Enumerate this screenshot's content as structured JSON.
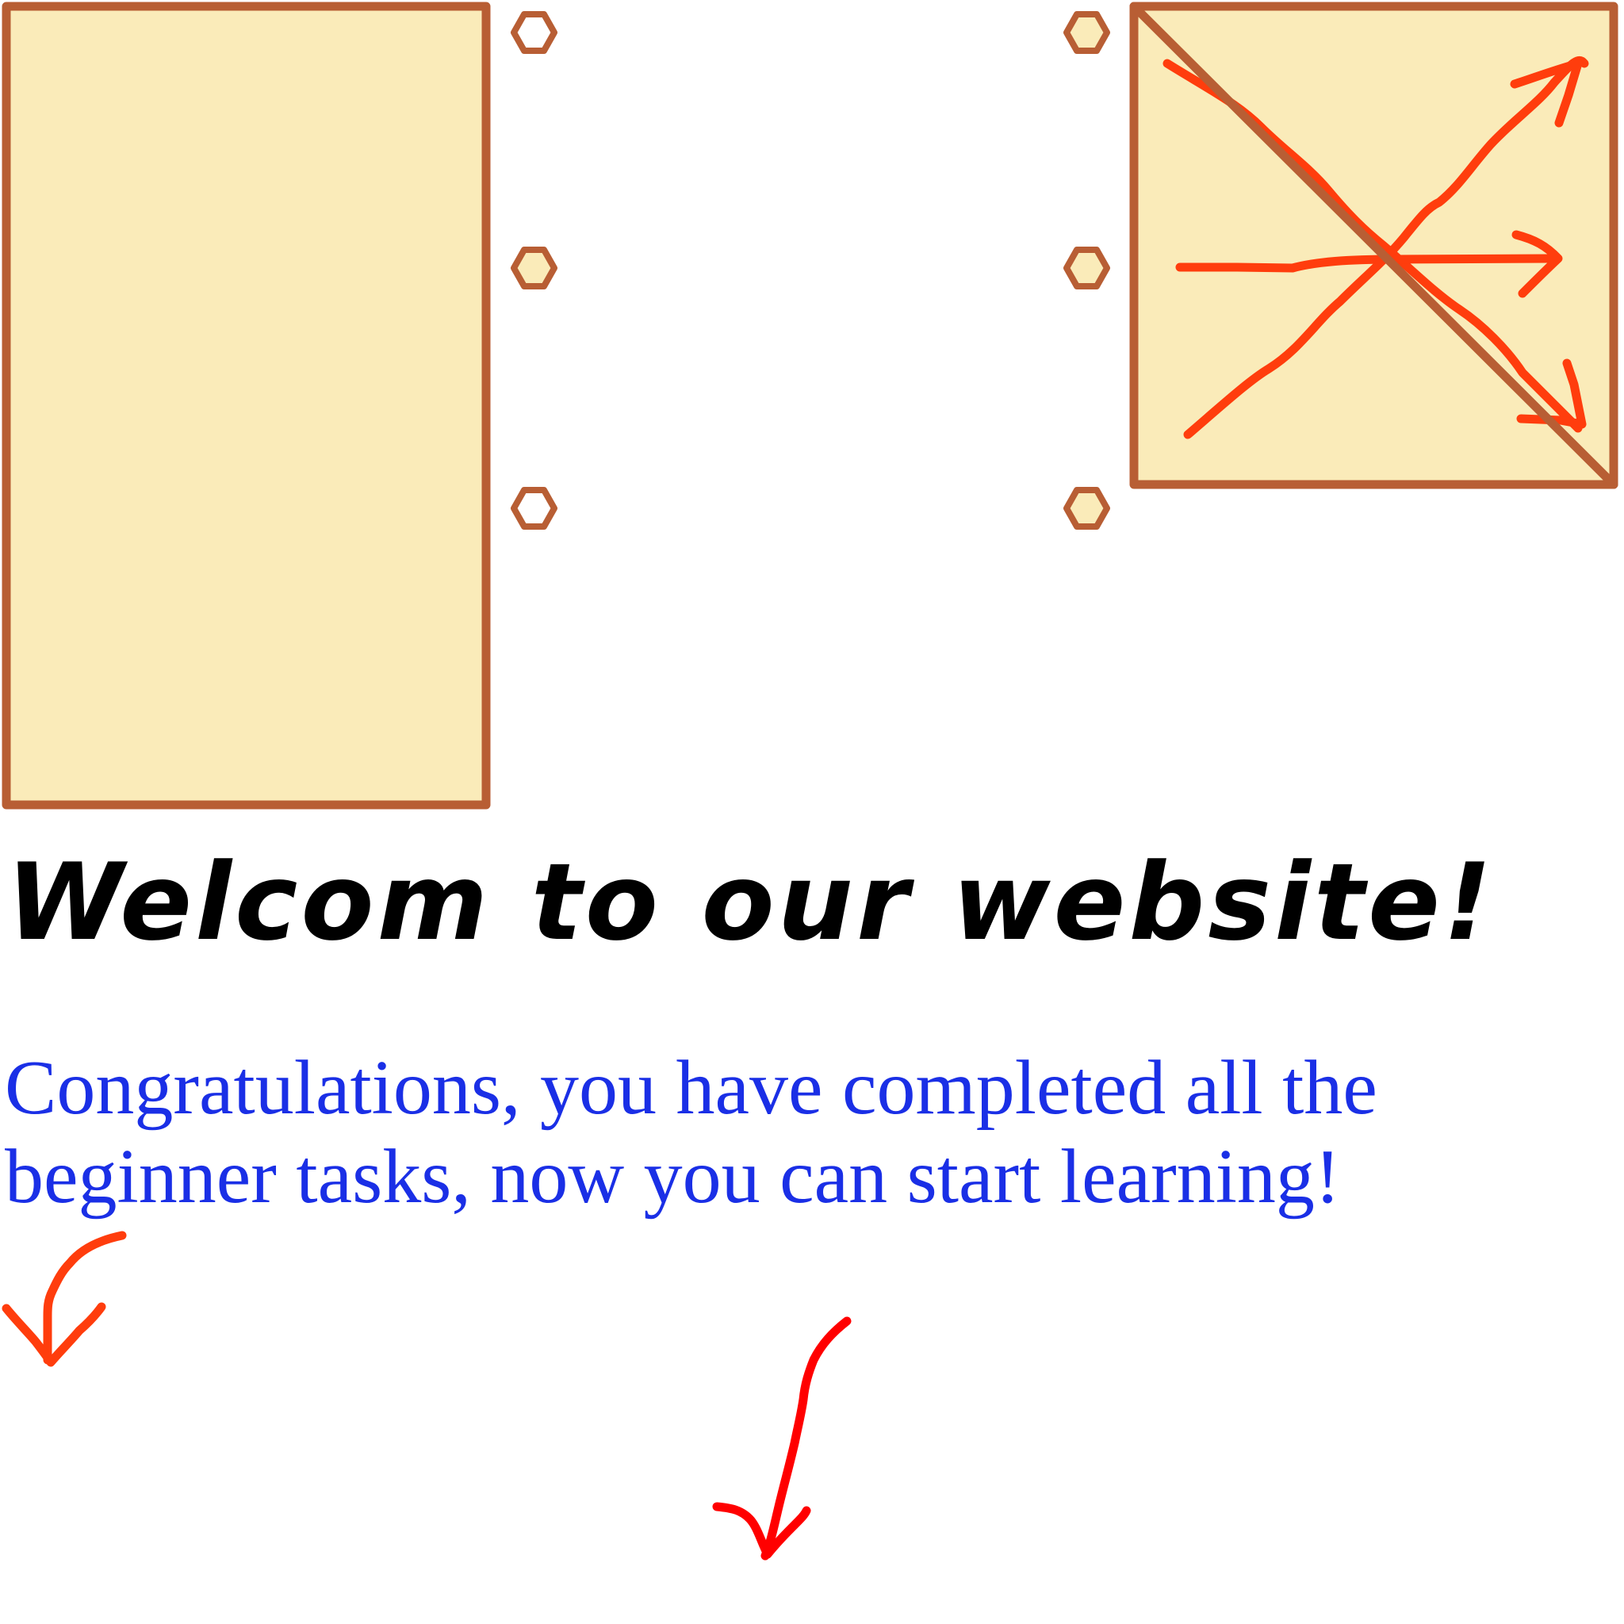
{
  "heading": {
    "title": "Welcom to our website!"
  },
  "message": {
    "text": "Congratulations, you have completed all the beginner tasks, now you can start learning!"
  },
  "colors": {
    "panel_fill": "#faebb9",
    "panel_stroke": "#b85e34",
    "arrow_orange": "#ff3d0d",
    "arrow_red": "#ff0000",
    "title_text": "#000000",
    "message_text": "#1a2fe6"
  },
  "icons": {
    "handle": "hexagon-handle-icon",
    "cross_out": "diagonal-slash-icon",
    "arrows": "arrow-icon"
  }
}
